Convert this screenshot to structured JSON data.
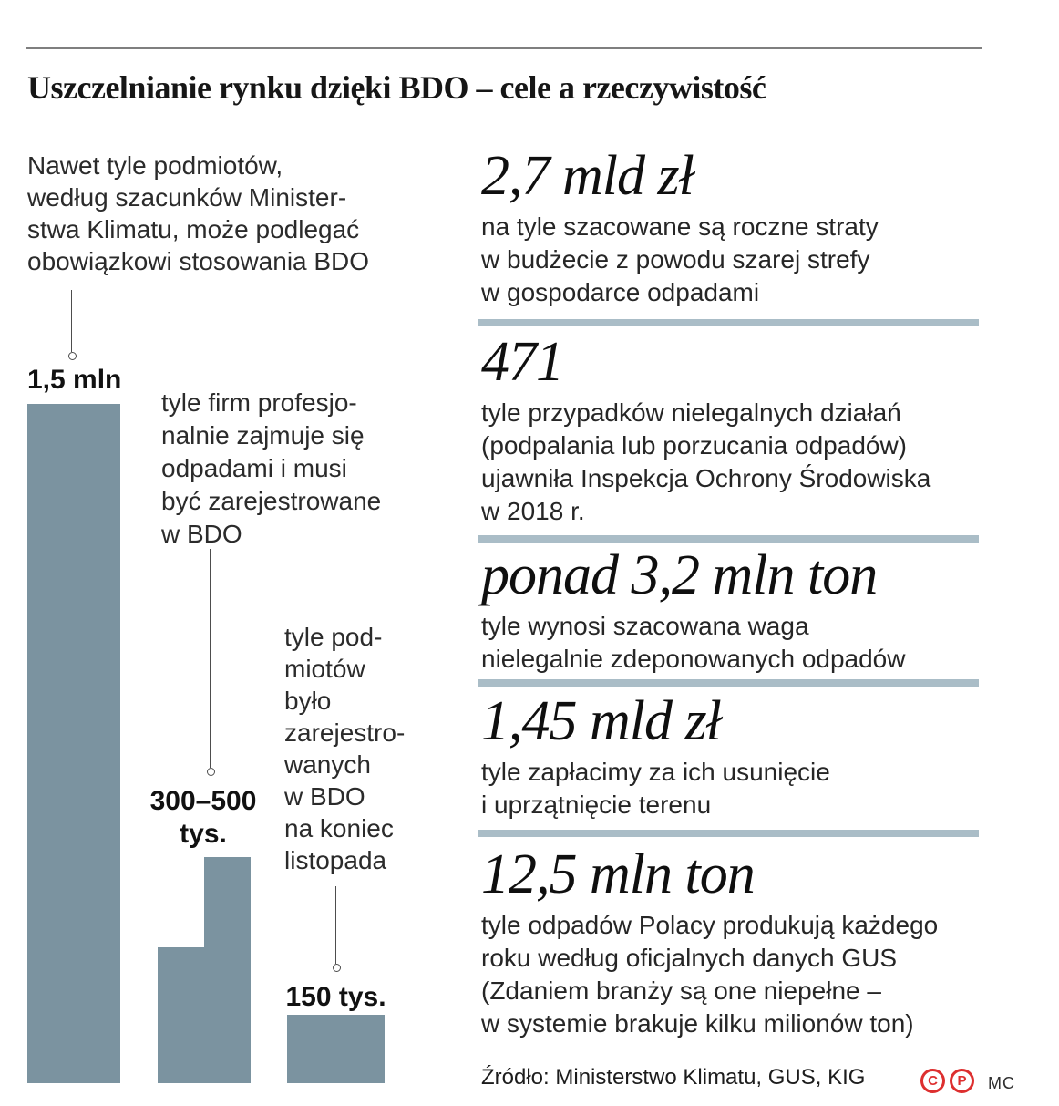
{
  "title": "Uszczelnianie rynku dzięki BDO – cele a rzeczywistość",
  "colors": {
    "bar": "#7b93a0",
    "divider": "#aabdc7",
    "top_rule": "#7f7f7f",
    "badge_red": "#dd2f2f"
  },
  "chart_data": {
    "type": "bar",
    "note": "values in tys. (thousands of entities); bar heights drawn to scale",
    "bars": [
      {
        "label": "1,5 mln",
        "value_tys": 1500,
        "annotation": "Nawet tyle podmiotów,\nwedług szacunków Minister-\nstwa Klimatu, może podlegać\nobowiązkowi stosowania BDO"
      },
      {
        "label": "300–500\ntys.",
        "values_tys": [
          300,
          500
        ],
        "annotation": "tyle firm profesjo-\nnalnie zajmuje się\nodpadami i musi\nbyć zarejestrowane\nw BDO"
      },
      {
        "label": "150 tys.",
        "value_tys": 150,
        "annotation": "tyle pod-\nmiotów\nbyło\nzarejestro-\nwanych\nw BDO\nna koniec\nlistopada"
      }
    ]
  },
  "stats": [
    {
      "value": "2,7 mld zł",
      "desc": "na tyle szacowane są roczne straty\nw budżecie z powodu szarej strefy\nw gospodarce odpadami"
    },
    {
      "value": "471",
      "desc": "tyle przypadków nielegalnych działań\n(podpalania lub porzucania odpadów)\nujawniła Inspekcja Ochrony Środowiska\nw 2018 r."
    },
    {
      "value": "ponad 3,2 mln ton",
      "desc": "tyle wynosi szacowana waga\nnielegalnie zdeponowanych odpadów"
    },
    {
      "value": "1,45 mld zł",
      "desc": "tyle zapłacimy za ich usunięcie\ni uprzątnięcie terenu"
    },
    {
      "value": "12,5 mln ton",
      "desc": "tyle odpadów Polacy produkują każdego\nroku według oficjalnych danych GUS\n(Zdaniem branży są one niepełne –\nw systemie brakuje kilku milionów ton)"
    }
  ],
  "footer": {
    "source": "Źródło: Ministerstwo Klimatu, GUS, KIG",
    "copyright_symbol": "C",
    "phonogram_symbol": "P",
    "credit": "MC"
  }
}
